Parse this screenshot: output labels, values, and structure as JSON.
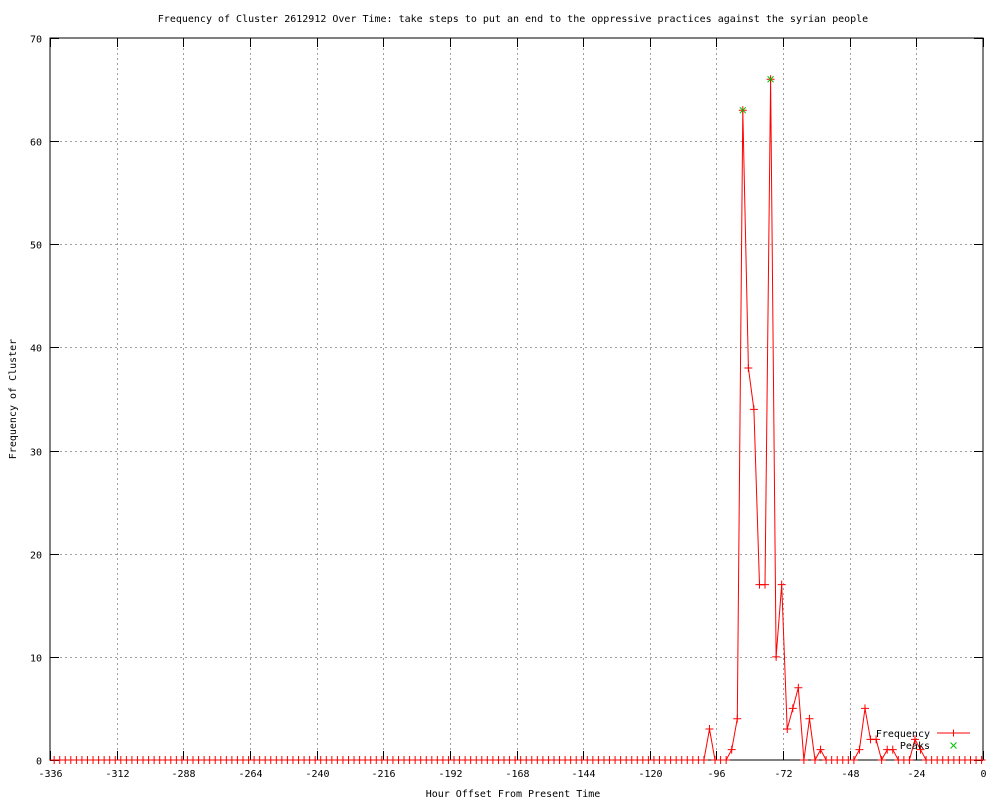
{
  "chart_data": {
    "type": "line",
    "title": "Frequency of Cluster 2612912 Over Time: take steps to put an end to the oppressive practices against the syrian people",
    "xlabel": "Hour Offset From Present Time",
    "ylabel": "Frequency of Cluster",
    "xlim": [
      -336,
      0
    ],
    "ylim": [
      0,
      70
    ],
    "xticks": [
      -336,
      -312,
      -288,
      -264,
      -240,
      -216,
      -192,
      -168,
      -144,
      -120,
      -96,
      -72,
      -48,
      -24,
      0
    ],
    "yticks": [
      0,
      10,
      20,
      30,
      40,
      50,
      60,
      70
    ],
    "grid": true,
    "legend_position": "bottom-right",
    "series": [
      {
        "name": "Frequency",
        "color": "#ff0000",
        "marker": "plus",
        "x": [
          -334.5,
          -332.5,
          -330.5,
          -328.5,
          -326.5,
          -324.5,
          -322.5,
          -320.5,
          -318.5,
          -316.5,
          -314.5,
          -312.5,
          -310.5,
          -308.5,
          -306.5,
          -304.5,
          -302.5,
          -300.5,
          -298.5,
          -296.5,
          -294.5,
          -292.5,
          -290.5,
          -288.5,
          -286.5,
          -284.5,
          -282.5,
          -280.5,
          -278.5,
          -276.5,
          -274.5,
          -272.5,
          -270.5,
          -268.5,
          -266.5,
          -264.5,
          -262.5,
          -260.5,
          -258.5,
          -256.5,
          -254.5,
          -252.5,
          -250.5,
          -248.5,
          -246.5,
          -244.5,
          -242.5,
          -240.5,
          -238.5,
          -236.5,
          -234.5,
          -232.5,
          -230.5,
          -228.5,
          -226.5,
          -224.5,
          -222.5,
          -220.5,
          -218.5,
          -216.5,
          -214.5,
          -212.5,
          -210.5,
          -208.5,
          -206.5,
          -204.5,
          -202.5,
          -200.5,
          -198.5,
          -196.5,
          -194.5,
          -192.5,
          -190.5,
          -188.5,
          -186.5,
          -184.5,
          -182.5,
          -180.5,
          -178.5,
          -176.5,
          -174.5,
          -172.5,
          -170.5,
          -168.5,
          -166.5,
          -164.5,
          -162.5,
          -160.5,
          -158.5,
          -156.5,
          -154.5,
          -152.5,
          -150.5,
          -148.5,
          -146.5,
          -144.5,
          -142.5,
          -140.5,
          -138.5,
          -136.5,
          -134.5,
          -132.5,
          -130.5,
          -128.5,
          -126.5,
          -124.5,
          -122.5,
          -120.5,
          -118.5,
          -116.5,
          -114.5,
          -112.5,
          -110.5,
          -108.5,
          -106.5,
          -104.5,
          -102.5,
          -100.5,
          -98.5,
          -96.5,
          -94.5,
          -92.5,
          -90.5,
          -88.5,
          -86.5,
          -84.5,
          -82.5,
          -80.5,
          -78.5,
          -76.5,
          -74.5,
          -72.5,
          -70.5,
          -68.5,
          -66.5,
          -64.5,
          -62.5,
          -60.5,
          -58.5,
          -56.5,
          -54.5,
          -52.5,
          -50.5,
          -48.5,
          -46.5,
          -44.5,
          -42.5,
          -40.5,
          -38.5,
          -36.5,
          -34.5,
          -32.5,
          -30.5,
          -28.5,
          -26.5,
          -24.5,
          -22.5,
          -20.5,
          -18.5,
          -16.5,
          -14.5,
          -12.5,
          -10.5,
          -8.5,
          -6.5,
          -4.5,
          -2.5,
          -0.5
        ],
        "y": [
          0,
          0,
          0,
          0,
          0,
          0,
          0,
          0,
          0,
          0,
          0,
          0,
          0,
          0,
          0,
          0,
          0,
          0,
          0,
          0,
          0,
          0,
          0,
          0,
          0,
          0,
          0,
          0,
          0,
          0,
          0,
          0,
          0,
          0,
          0,
          0,
          0,
          0,
          0,
          0,
          0,
          0,
          0,
          0,
          0,
          0,
          0,
          0,
          0,
          0,
          0,
          0,
          0,
          0,
          0,
          0,
          0,
          0,
          0,
          0,
          0,
          0,
          0,
          0,
          0,
          0,
          0,
          0,
          0,
          0,
          0,
          0,
          0,
          0,
          0,
          0,
          0,
          0,
          0,
          0,
          0,
          0,
          0,
          0,
          0,
          0,
          0,
          0,
          0,
          0,
          0,
          0,
          0,
          0,
          0,
          0,
          0,
          0,
          0,
          0,
          0,
          0,
          0,
          0,
          0,
          0,
          0,
          0,
          0,
          0,
          0,
          0,
          0,
          0,
          0,
          0,
          0,
          0,
          3,
          0,
          0,
          0,
          1,
          4,
          63,
          38,
          34,
          17,
          17,
          66,
          10,
          17,
          3,
          5,
          7,
          0,
          4,
          0,
          1,
          0,
          0,
          0,
          0,
          0,
          0,
          1,
          5,
          2,
          2,
          0,
          1,
          1,
          0,
          0,
          0,
          2,
          1,
          0,
          0,
          0,
          0,
          0,
          0,
          0,
          0,
          0,
          0,
          0
        ]
      },
      {
        "name": "Peaks",
        "color": "#00c000",
        "marker": "cross",
        "x": [
          -86.5,
          -76.5
        ],
        "y": [
          63,
          66
        ]
      }
    ]
  }
}
